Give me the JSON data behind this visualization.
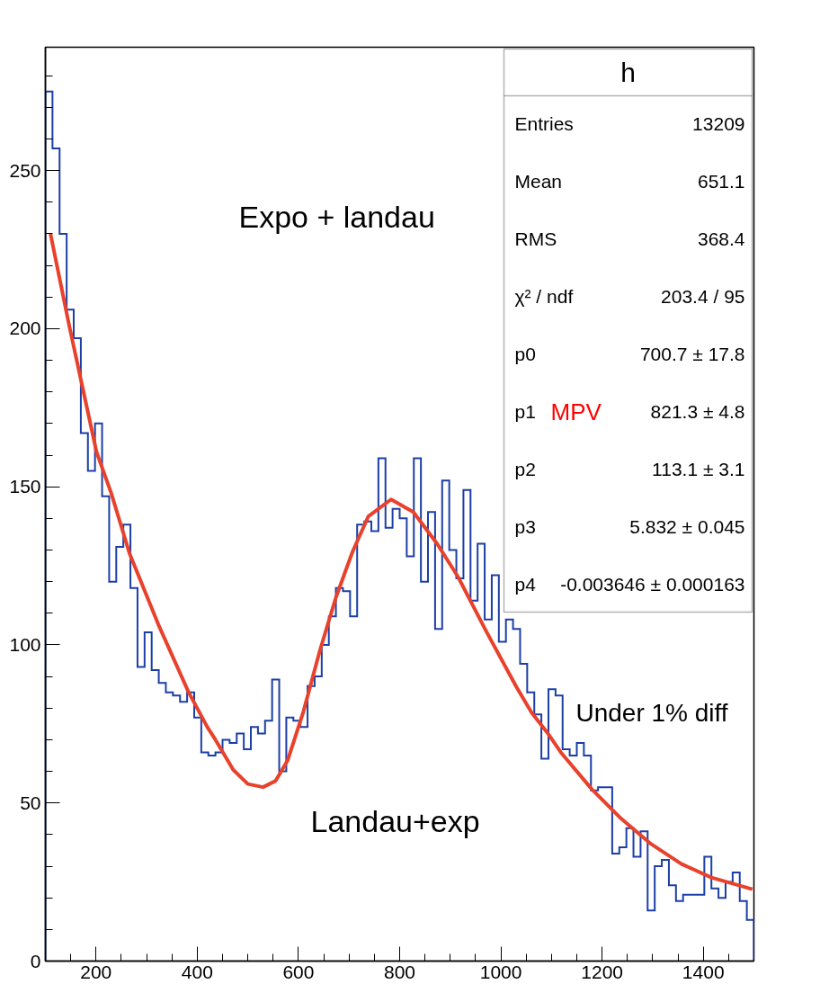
{
  "chart_data": {
    "type": "histogram",
    "series": [
      {
        "color": "#1c3fa6",
        "bins": [
          100,
          114,
          128,
          142,
          156,
          170,
          184,
          198,
          212,
          226,
          240,
          254,
          268,
          282,
          296,
          310,
          324,
          338,
          352,
          366,
          380,
          394,
          408,
          422,
          436,
          450,
          464,
          478,
          492,
          506,
          520,
          534,
          548,
          562,
          576,
          590,
          604,
          618,
          632,
          646,
          660,
          674,
          688,
          702,
          716,
          730,
          744,
          758,
          772,
          786,
          800,
          814,
          828,
          842,
          856,
          870,
          884,
          898,
          912,
          926,
          940,
          954,
          968,
          982,
          996,
          1010,
          1024,
          1038,
          1052,
          1066,
          1080,
          1094,
          1108,
          1122,
          1136,
          1150,
          1164,
          1178,
          1192,
          1206,
          1220,
          1234,
          1248,
          1262,
          1276,
          1290,
          1304,
          1318,
          1332,
          1346,
          1360,
          1374,
          1388,
          1402,
          1416,
          1430,
          1444,
          1458,
          1472,
          1486,
          1500
        ],
        "values": [
          275,
          257,
          230,
          206,
          197,
          167,
          155,
          170,
          147,
          120,
          131,
          138,
          118,
          93,
          104,
          92,
          88,
          85,
          84,
          82,
          85,
          77,
          66,
          65,
          66,
          70,
          69,
          72,
          67,
          74,
          72,
          76,
          89,
          60,
          77,
          76,
          74,
          87,
          90,
          100,
          109,
          118,
          117,
          109,
          138,
          139,
          136,
          159,
          137,
          143,
          140,
          128,
          159,
          120,
          142,
          105,
          152,
          130,
          121,
          149,
          114,
          132,
          108,
          122,
          101,
          108,
          105,
          94,
          85,
          78,
          64,
          86,
          84,
          67,
          65,
          69,
          65,
          54,
          55,
          55,
          34,
          36,
          42,
          33,
          41,
          16,
          30,
          32,
          24,
          19,
          21,
          21,
          21,
          33,
          23,
          20,
          25,
          28,
          19,
          13
        ]
      },
      {
        "type": "line",
        "color": "#e8412c",
        "x": [
          110,
          147,
          201,
          230,
          266,
          323,
          383,
          420,
          436,
          471,
          500,
          530,
          555,
          579,
          610,
          642,
          674,
          707,
          738,
          783,
          827,
          874,
          915,
          972,
          1031,
          1061,
          1091,
          1120,
          1180,
          1238,
          1297,
          1357,
          1416,
          1497
        ],
        "values": [
          230,
          201,
          161,
          148,
          129,
          106.5,
          85,
          74,
          70,
          60.5,
          56,
          55,
          57,
          63.6,
          79,
          98,
          115,
          129.5,
          140.6,
          146,
          142,
          132,
          121.6,
          104,
          86.6,
          78.5,
          72.4,
          65.7,
          54.3,
          45,
          37,
          30.7,
          26.4,
          22.7
        ]
      }
    ],
    "xlim": [
      100,
      1500
    ],
    "ylim": [
      0,
      289
    ],
    "xticks": [
      {
        "value": 150,
        "label": null
      },
      200,
      {
        "value": 250,
        "label": null
      },
      {
        "value": 300,
        "label": null
      },
      {
        "value": 350,
        "label": null
      },
      400,
      {
        "value": 450,
        "label": null
      },
      {
        "value": 500,
        "label": null
      },
      {
        "value": 550,
        "label": null
      },
      600,
      {
        "value": 650,
        "label": null
      },
      {
        "value": 700,
        "label": null
      },
      {
        "value": 750,
        "label": null
      },
      800,
      {
        "value": 850,
        "label": null
      },
      {
        "value": 900,
        "label": null
      },
      {
        "value": 950,
        "label": null
      },
      1000,
      {
        "value": 1050,
        "label": null
      },
      {
        "value": 1100,
        "label": null
      },
      {
        "value": 1150,
        "label": null
      },
      1200,
      {
        "value": 1250,
        "label": null
      },
      {
        "value": 1300,
        "label": null
      },
      {
        "value": 1350,
        "label": null
      },
      1400,
      {
        "value": 1450,
        "label": null
      }
    ],
    "yticks": [
      0,
      {
        "value": 10,
        "label": null
      },
      {
        "value": 20,
        "label": null
      },
      {
        "value": 30,
        "label": null
      },
      {
        "value": 40,
        "label": null
      },
      50,
      {
        "value": 60,
        "label": null
      },
      {
        "value": 70,
        "label": null
      },
      {
        "value": 80,
        "label": null
      },
      {
        "value": 90,
        "label": null
      },
      100,
      {
        "value": 110,
        "label": null
      },
      {
        "value": 120,
        "label": null
      },
      {
        "value": 130,
        "label": null
      },
      {
        "value": 140,
        "label": null
      },
      150,
      {
        "value": 160,
        "label": null
      },
      {
        "value": 170,
        "label": null
      },
      {
        "value": 180,
        "label": null
      },
      {
        "value": 190,
        "label": null
      },
      200,
      {
        "value": 210,
        "label": null
      },
      {
        "value": 220,
        "label": null
      },
      {
        "value": 230,
        "label": null
      },
      {
        "value": 240,
        "label": null
      },
      250,
      {
        "value": 260,
        "label": null
      },
      {
        "value": 270,
        "label": null
      },
      {
        "value": 280,
        "label": null
      }
    ],
    "annotations": [
      "h",
      "Entries",
      "13209",
      "Mean",
      "651.1",
      "RMS",
      "368.4",
      "χ² / ndf",
      "203.4 / 95",
      "p0",
      "700.7 ± 17.8",
      "p1",
      "821.3 ± 4.8",
      "p2",
      "113.1 ± 3.1",
      "p3",
      "5.832 ± 0.045",
      "p4",
      "-0.003646 ± 0.000163",
      "Expo + landau",
      "MPV",
      "Landau+exp",
      "Under 1% diff"
    ]
  }
}
